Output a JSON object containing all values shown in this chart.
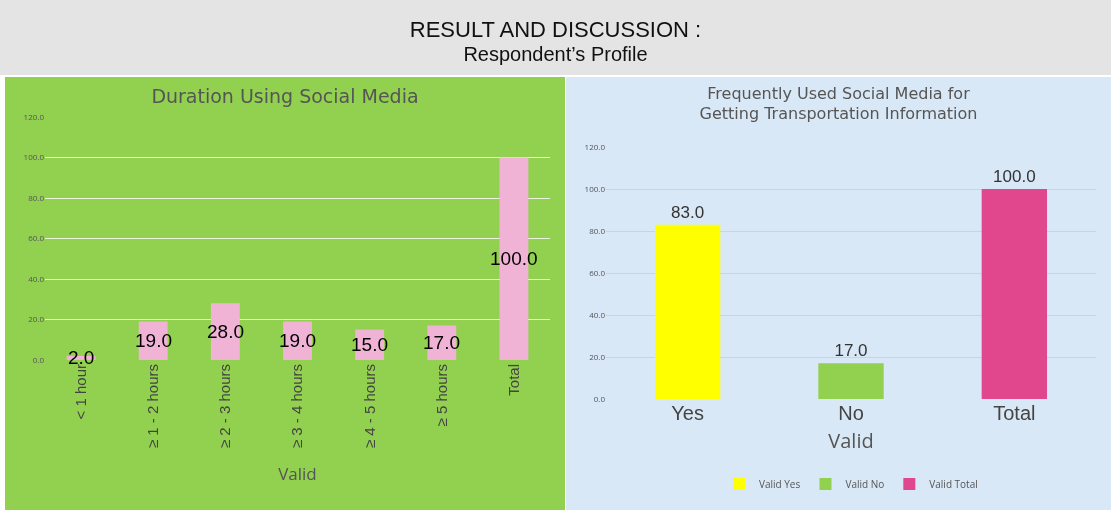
{
  "chart_data": [
    {
      "type": "other",
      "title": "RESULT AND DISCUSSION :",
      "subtitle": "Respondent’s   Profile"
    },
    {
      "type": "bar",
      "title": "Duration Using Social Media",
      "xlabel": "Valid",
      "categories": [
        "< 1 hour",
        "≥ 1 - 2 hours",
        "≥ 2 - 3 hours",
        "≥ 3 - 4 hours",
        "≥ 4 - 5 hours",
        "≥ 5 hours",
        "Total"
      ],
      "values": [
        2,
        19,
        28,
        19,
        15,
        17,
        100
      ],
      "value_labels": [
        "2.0",
        "19.0",
        "28.0",
        "19.0",
        "15.0",
        "17.0",
        "100.0"
      ],
      "color": "#f0b3d6",
      "ylim": [
        0,
        120
      ],
      "yticks": [
        {
          "value": 0,
          "label": "0.0"
        },
        {
          "value": 20,
          "label": "20.0"
        },
        {
          "value": 40,
          "label": "40.0"
        },
        {
          "value": 60,
          "label": "60.0"
        },
        {
          "value": 80,
          "label": "80.0"
        },
        {
          "value": 100,
          "label": "100.0"
        },
        {
          "value": 120,
          "label": "120.0"
        }
      ],
      "grid": "y"
    },
    {
      "type": "bar",
      "title": "Frequently Used Social Media for\nGetting Transportation Information",
      "xlabel": "Valid",
      "categories": [
        "Yes",
        "No",
        "Total"
      ],
      "series": [
        {
          "name": "Valid Yes",
          "color": "#ffff00",
          "values": [
            83,
            null,
            null
          ],
          "value_labels": [
            "83.0",
            null,
            null
          ]
        },
        {
          "name": "Valid No",
          "color": "#92d050",
          "values": [
            null,
            17,
            null
          ],
          "value_labels": [
            null,
            "17.0",
            null
          ]
        },
        {
          "name": "Valid Total",
          "color": "#e0478c",
          "values": [
            null,
            null,
            100
          ],
          "value_labels": [
            null,
            null,
            "100.0"
          ]
        }
      ],
      "ylim": [
        0,
        120
      ],
      "yticks": [
        {
          "value": 0,
          "label": "0.0"
        },
        {
          "value": 20,
          "label": "20.0"
        },
        {
          "value": 40,
          "label": "40.0"
        },
        {
          "value": 60,
          "label": "60.0"
        },
        {
          "value": 80,
          "label": "80.0"
        },
        {
          "value": 100,
          "label": "100.0"
        },
        {
          "value": 120,
          "label": "120.0"
        }
      ],
      "grid": "y",
      "legend": "bottom"
    }
  ]
}
